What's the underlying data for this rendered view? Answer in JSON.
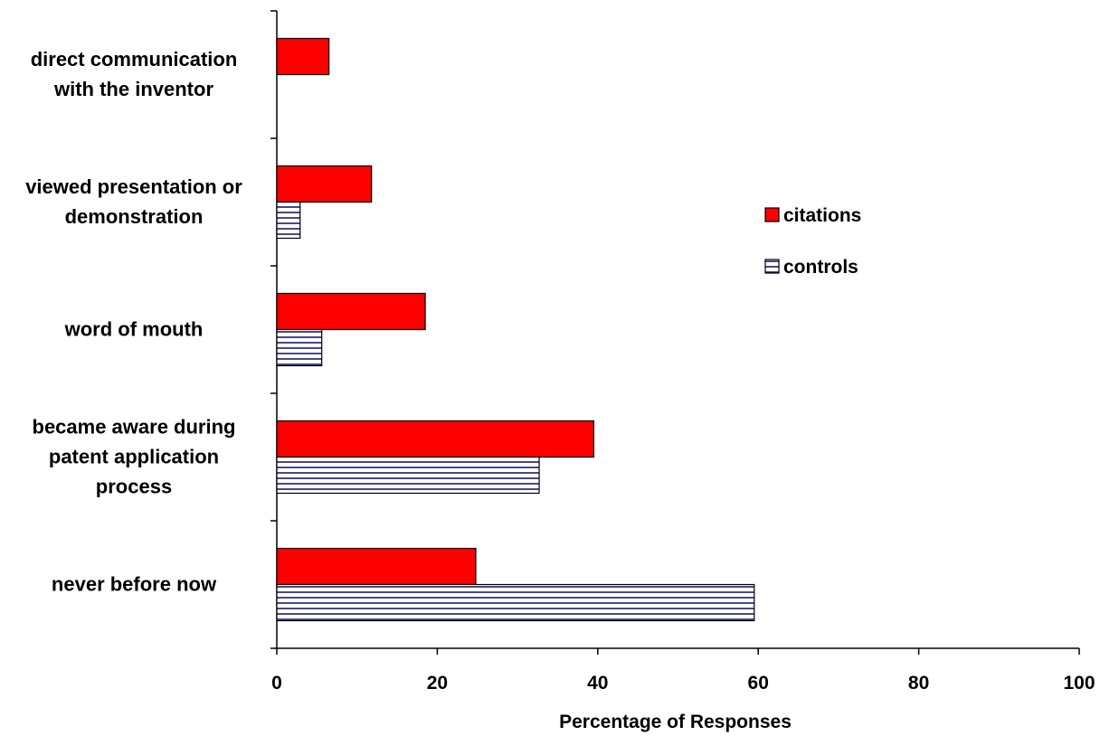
{
  "chart_data": {
    "type": "bar",
    "orientation": "horizontal",
    "categories": [
      [
        "direct communication",
        "with the inventor"
      ],
      [
        "viewed presentation or",
        "demonstration"
      ],
      [
        "word of mouth"
      ],
      [
        "became aware during",
        "patent application",
        "process"
      ],
      [
        "never before now"
      ]
    ],
    "series": [
      {
        "name": "citations",
        "values": [
          6.5,
          11.8,
          18.5,
          39.5,
          24.8
        ],
        "color": "#ff0000",
        "pattern": "solid"
      },
      {
        "name": "controls",
        "values": [
          0,
          2.9,
          5.6,
          32.7,
          59.5
        ],
        "color": "#ffffff",
        "pattern": "horizontal-stripes",
        "stripe_color": "#1a1a6e"
      }
    ],
    "xlabel": "Percentage of Responses",
    "ylabel": "",
    "title": "",
    "xlim": [
      0,
      100
    ],
    "xticks": [
      0,
      20,
      40,
      60,
      80,
      100
    ],
    "grid": false,
    "legend_position": "right"
  }
}
